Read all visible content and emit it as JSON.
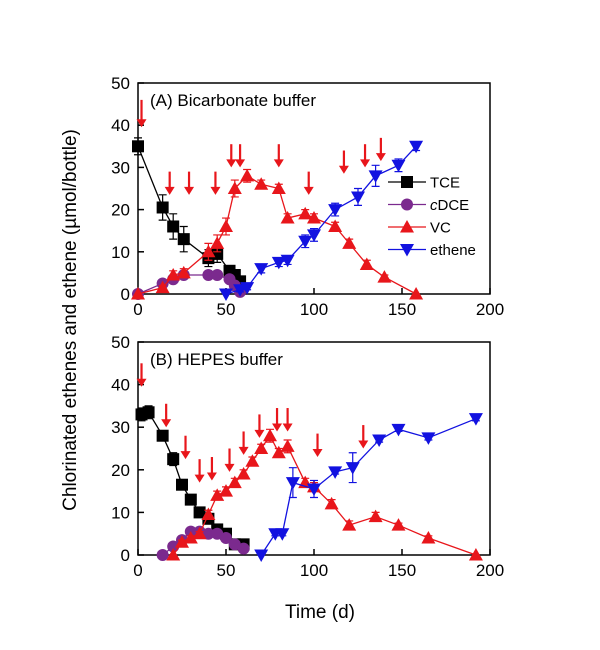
{
  "figure": {
    "ylabel": "Chlorinated ethenes and ethene (µmol/bottle)",
    "xlabel": "Time (d)"
  },
  "colors": {
    "TCE": "#000000",
    "cDCE": "#7b2a8e",
    "VC": "#e8161b",
    "ethene": "#1212e0",
    "arrow": "#e8161b"
  },
  "chart_data": [
    {
      "type": "line",
      "title": "(A) Bicarbonate buffer",
      "xlim": [
        0,
        200
      ],
      "ylim": [
        0,
        50
      ],
      "xticks": [
        0,
        50,
        100,
        150,
        200
      ],
      "yticks": [
        0,
        10,
        20,
        30,
        40,
        50
      ],
      "grid": false,
      "legend": {
        "placement": "right",
        "entries": [
          {
            "name": "TCE",
            "italic_prefix": ""
          },
          {
            "name": "DCE",
            "italic_prefix": "c"
          },
          {
            "name": "VC",
            "italic_prefix": ""
          },
          {
            "name": "ethene",
            "italic_prefix": ""
          }
        ]
      },
      "series": [
        {
          "name": "TCE",
          "marker": "square",
          "color": "#000000",
          "x": [
            0,
            14,
            20,
            26,
            40,
            45,
            52,
            55,
            58
          ],
          "y": [
            35,
            20.5,
            16,
            13,
            8.5,
            9.5,
            5.5,
            4.5,
            3
          ],
          "err": [
            2,
            3,
            3,
            3,
            2,
            2,
            1,
            1,
            1
          ]
        },
        {
          "name": "cDCE",
          "marker": "circle",
          "color": "#7b2a8e",
          "x": [
            0,
            14,
            20,
            26,
            40,
            45,
            52,
            55,
            58
          ],
          "y": [
            0,
            2.5,
            3.5,
            4.5,
            4.5,
            4.5,
            3.5,
            2,
            0.5
          ],
          "err": [
            0,
            0.5,
            0.5,
            0.5,
            0.5,
            0.5,
            0.5,
            0.5,
            0.5
          ]
        },
        {
          "name": "VC",
          "marker": "triangle-up",
          "color": "#e8161b",
          "x": [
            0,
            14,
            20,
            26,
            40,
            45,
            50,
            55,
            62,
            70,
            80,
            85,
            95,
            100,
            112,
            120,
            130,
            140,
            158
          ],
          "y": [
            0,
            1.5,
            4.5,
            5,
            10,
            12,
            16,
            25,
            28,
            26,
            25,
            18,
            19,
            18,
            16,
            12,
            7,
            4,
            0
          ],
          "err": [
            0,
            0.5,
            1,
            1,
            2,
            2,
            2,
            2,
            1.5,
            1,
            1,
            1,
            1,
            1,
            1,
            1,
            1,
            0.5,
            0
          ]
        },
        {
          "name": "ethene",
          "marker": "triangle-down",
          "color": "#1212e0",
          "x": [
            50,
            58,
            62,
            70,
            80,
            85,
            95,
            100,
            112,
            125,
            135,
            148,
            158
          ],
          "y": [
            0,
            1,
            1.5,
            6,
            7.5,
            8,
            12.5,
            14,
            20,
            23,
            28,
            30.5,
            35
          ],
          "err": [
            0,
            0.5,
            0.5,
            1,
            1,
            1,
            1.5,
            1.5,
            1.5,
            2,
            2.5,
            1.5,
            1
          ]
        }
      ],
      "amendment_arrows": [
        {
          "x": 2,
          "y_top": 46,
          "y_tip": 39.5
        },
        {
          "x": 18,
          "y_top": 29,
          "y_tip": 23.5
        },
        {
          "x": 29,
          "y_top": 29,
          "y_tip": 23.5
        },
        {
          "x": 44,
          "y_top": 29,
          "y_tip": 23.5
        },
        {
          "x": 53,
          "y_top": 35.5,
          "y_tip": 30
        },
        {
          "x": 58,
          "y_top": 35.5,
          "y_tip": 30
        },
        {
          "x": 80,
          "y_top": 35.5,
          "y_tip": 30
        },
        {
          "x": 97,
          "y_top": 29,
          "y_tip": 23.5
        },
        {
          "x": 117,
          "y_top": 34,
          "y_tip": 28.5
        },
        {
          "x": 129,
          "y_top": 35.5,
          "y_tip": 30
        },
        {
          "x": 138,
          "y_top": 37,
          "y_tip": 31.5
        }
      ]
    },
    {
      "type": "line",
      "title": "(B) HEPES buffer",
      "xlim": [
        0,
        200
      ],
      "ylim": [
        0,
        50
      ],
      "xticks": [
        0,
        50,
        100,
        150,
        200
      ],
      "yticks": [
        0,
        10,
        20,
        30,
        40,
        50
      ],
      "grid": false,
      "series": [
        {
          "name": "TCE",
          "marker": "square",
          "color": "#000000",
          "x": [
            2,
            6,
            14,
            20,
            25,
            30,
            35,
            40,
            45,
            50,
            55,
            60
          ],
          "y": [
            33,
            33.5,
            28,
            22.5,
            16.5,
            13,
            10,
            8.5,
            6,
            5,
            2.5,
            2.5
          ],
          "err": [
            1.5,
            1.5,
            1,
            1.5,
            1,
            1,
            1,
            1,
            1,
            1,
            1,
            1
          ]
        },
        {
          "name": "cDCE",
          "marker": "circle",
          "color": "#7b2a8e",
          "x": [
            14,
            20,
            25,
            30,
            35,
            40,
            45,
            50,
            55,
            60
          ],
          "y": [
            0,
            2,
            3.5,
            5.5,
            5.5,
            5,
            5,
            4,
            2.5,
            1.5
          ],
          "err": [
            0,
            0.5,
            0.5,
            0.5,
            0.5,
            0.5,
            0.5,
            0.5,
            0.5,
            0.5
          ]
        },
        {
          "name": "VC",
          "marker": "triangle-up",
          "color": "#e8161b",
          "x": [
            20,
            25,
            30,
            35,
            40,
            45,
            50,
            55,
            60,
            65,
            70,
            75,
            80,
            85,
            95,
            100,
            110,
            120,
            135,
            148,
            165,
            192
          ],
          "y": [
            0,
            3,
            4,
            5,
            9.5,
            14,
            15,
            17,
            19,
            22,
            25,
            28,
            24,
            25.5,
            17,
            16,
            12,
            7,
            9,
            7,
            4,
            0
          ],
          "err": [
            0,
            0.5,
            0.5,
            0.5,
            1,
            1,
            1,
            1,
            1,
            1,
            1,
            1.5,
            1,
            1.5,
            1,
            1,
            1,
            1,
            1,
            0.5,
            0.5,
            0
          ]
        },
        {
          "name": "ethene",
          "marker": "triangle-down",
          "color": "#1212e0",
          "x": [
            70,
            78,
            82,
            88,
            100,
            112,
            122,
            137,
            148,
            165,
            192
          ],
          "y": [
            0,
            5,
            5,
            17,
            15.5,
            19.5,
            20.5,
            27,
            29.5,
            27.5,
            32
          ],
          "err": [
            0,
            0.5,
            0.5,
            3.5,
            2,
            0.5,
            3.5,
            0.5,
            0.5,
            0.5,
            0.5
          ]
        }
      ],
      "amendment_arrows": [
        {
          "x": 2,
          "y_top": 45,
          "y_tip": 39.5
        },
        {
          "x": 16,
          "y_top": 35.5,
          "y_tip": 30
        },
        {
          "x": 27,
          "y_top": 28,
          "y_tip": 22.5
        },
        {
          "x": 35,
          "y_top": 22.5,
          "y_tip": 17
        },
        {
          "x": 42,
          "y_top": 23,
          "y_tip": 17.5
        },
        {
          "x": 52,
          "y_top": 25,
          "y_tip": 19.5
        },
        {
          "x": 60,
          "y_top": 29,
          "y_tip": 23.5
        },
        {
          "x": 69,
          "y_top": 33,
          "y_tip": 27.5
        },
        {
          "x": 79,
          "y_top": 34.5,
          "y_tip": 29
        },
        {
          "x": 85,
          "y_top": 34.5,
          "y_tip": 29
        },
        {
          "x": 102,
          "y_top": 28.5,
          "y_tip": 23
        },
        {
          "x": 128,
          "y_top": 30.5,
          "y_tip": 25
        }
      ]
    }
  ]
}
